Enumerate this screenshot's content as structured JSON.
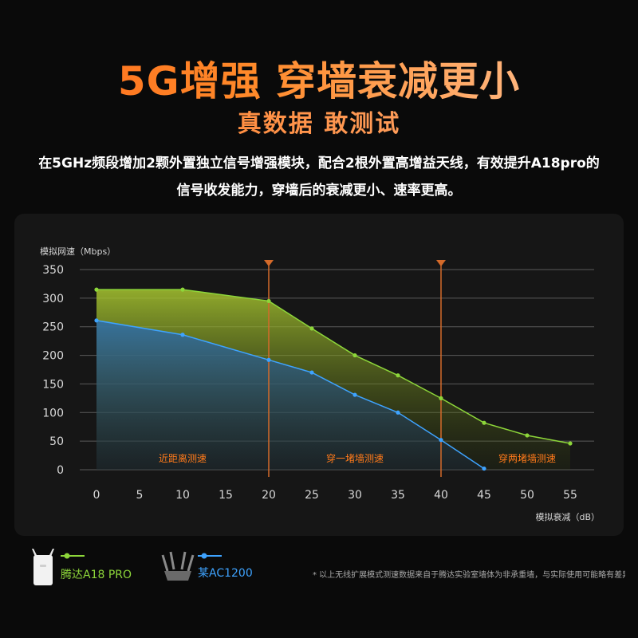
{
  "headline": "5G增强 穿墙衰减更小",
  "subheadline": "真数据 敢测试",
  "description": "在5GHz频段增加2颗外置独立信号增强模块，配合2根外置高增益天线，有效提升A18pro的信号收发能力，穿墙后的衰减更小、速率更高。",
  "colors": {
    "accent": "#ff7a1a",
    "a18": "#8dd63a",
    "ac1200": "#3ea3ff",
    "marker": "#d46a2a"
  },
  "chart_data": {
    "type": "area",
    "ylabel": "模拟网速（Mbps）",
    "xlabel": "模拟衰减（dB）",
    "x": [
      0,
      10,
      20,
      25,
      30,
      35,
      40,
      45,
      50,
      55
    ],
    "xticks": [
      0,
      5,
      10,
      15,
      20,
      25,
      30,
      35,
      40,
      45,
      50,
      55
    ],
    "yticks": [
      0,
      50,
      100,
      150,
      200,
      250,
      300,
      350
    ],
    "xlim": [
      0,
      55
    ],
    "ylim": [
      0,
      350
    ],
    "grid": true,
    "series": [
      {
        "name": "腾达A18 PRO",
        "color": "#8dd63a",
        "x": [
          0,
          10,
          20,
          25,
          30,
          35,
          40,
          45,
          50,
          55
        ],
        "values": [
          315,
          315,
          295,
          247,
          200,
          165,
          125,
          82,
          60,
          46
        ]
      },
      {
        "name": "某AC1200",
        "color": "#3ea3ff",
        "x": [
          0,
          10,
          20,
          25,
          30,
          35,
          40,
          45
        ],
        "values": [
          261,
          236,
          192,
          170,
          131,
          100,
          52,
          2
        ]
      }
    ],
    "markers": [
      20,
      40
    ],
    "zones": [
      {
        "label": "近距离测速",
        "x_center": 10
      },
      {
        "label": "穿一堵墙测速",
        "x_center": 30
      },
      {
        "label": "穿两堵墙测速",
        "x_center": 50
      }
    ]
  },
  "legend": [
    {
      "label": "腾达A18 PRO",
      "icon": "router-icon",
      "color": "#8dd63a"
    },
    {
      "label": "某AC1200",
      "icon": "router-antenna-icon",
      "color": "#3ea3ff"
    }
  ],
  "footnote": "* 以上无线扩展模式测速数据来自于腾达实验室墙体为非承重墙，与实际使用可能略有差异"
}
